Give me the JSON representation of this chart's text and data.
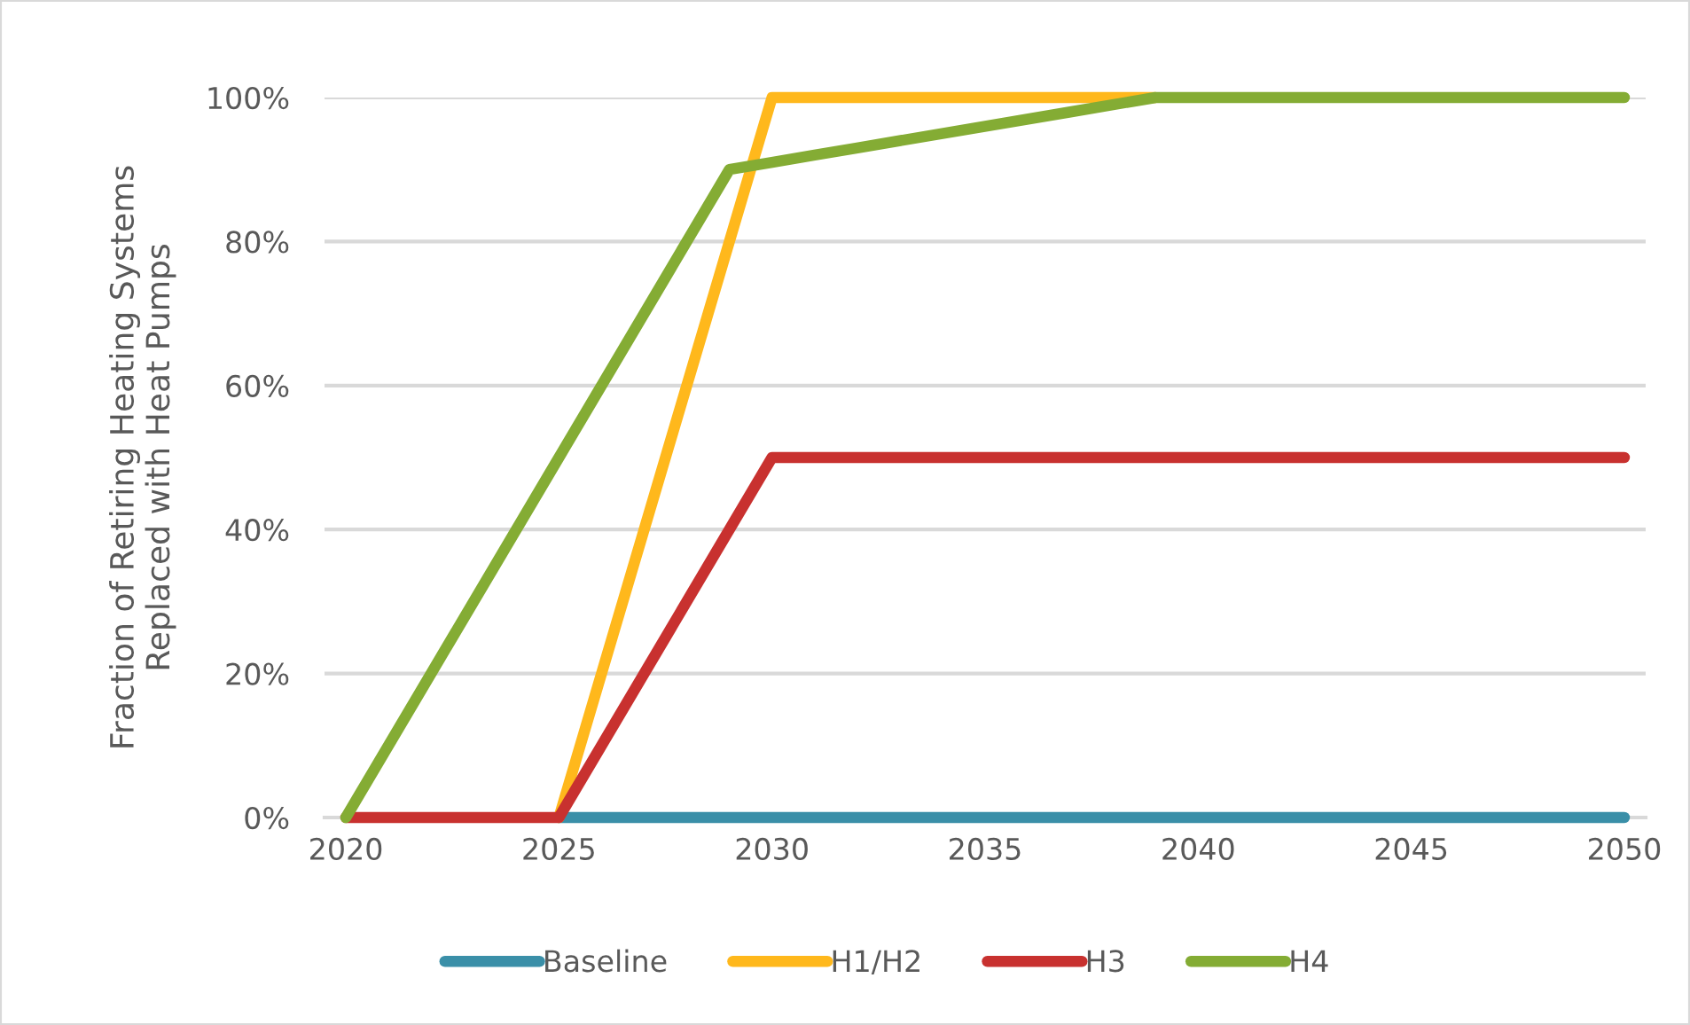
{
  "chart_data": {
    "type": "line",
    "ylabel": "Fraction of Retiring Heating Systems\nReplaced with Heat Pumps",
    "xlim": [
      2019.5,
      2050.5
    ],
    "xticks": [
      2020,
      2025,
      2030,
      2035,
      2040,
      2045,
      2050
    ],
    "ylim": [
      0,
      100
    ],
    "yticks": [
      {
        "value": 0,
        "label": "0%"
      },
      {
        "value": 20,
        "label": "20%"
      },
      {
        "value": 40,
        "label": "40%"
      },
      {
        "value": 60,
        "label": "60%"
      },
      {
        "value": 80,
        "label": "80%"
      },
      {
        "value": 100,
        "label": "100%"
      }
    ],
    "grid": "y",
    "legend": "bottom",
    "series": [
      {
        "name": "Baseline",
        "color": "#3a8fa8",
        "x": [
          2025,
          2050
        ],
        "values": [
          0,
          0
        ]
      },
      {
        "name": "H1/H2",
        "color": "#ffb81c",
        "x": [
          2025,
          2030,
          2039
        ],
        "values": [
          0,
          100,
          100
        ]
      },
      {
        "name": "H3",
        "color": "#c8312f",
        "x": [
          2020,
          2025,
          2030,
          2050
        ],
        "values": [
          0,
          0,
          50,
          50
        ]
      },
      {
        "name": "H4",
        "color": "#84ac34",
        "x": [
          2020,
          2025,
          2029,
          2030,
          2031,
          2032,
          2037,
          2039,
          2050
        ],
        "values": [
          0,
          50,
          90,
          91,
          92,
          93,
          98,
          100,
          100
        ]
      }
    ]
  }
}
